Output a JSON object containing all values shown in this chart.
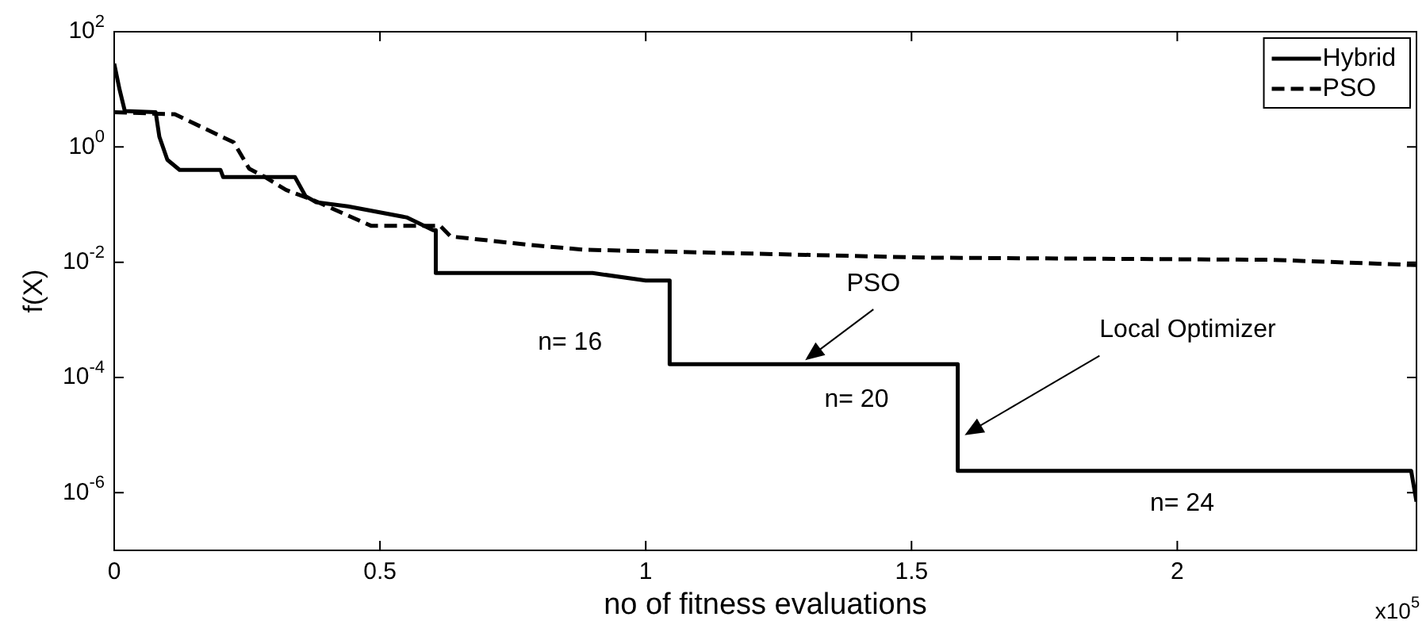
{
  "chart_data": {
    "type": "line",
    "xlabel": "no of fitness evaluations",
    "ylabel": "f(X)",
    "log": "y",
    "xlim": [
      0,
      2.45
    ],
    "xticks": [
      0,
      0.5,
      1,
      1.5,
      2
    ],
    "ylim": [
      1e-07,
      100
    ],
    "yticks": [
      {
        "value": 100,
        "label": "10$^{2}$"
      },
      {
        "value": 1,
        "label": "10$^{0}$"
      },
      {
        "value": 0.01,
        "label": "10$^{-2}$"
      },
      {
        "value": 0.0001,
        "label": "10$^{-4}$"
      },
      {
        "value": 1e-06,
        "label": "10$^{-6}$"
      }
    ],
    "grid": false,
    "legend": "top right",
    "marker": "none",
    "series": [
      {
        "name": "Hybrid",
        "color": "#000000",
        "line_style": "solid",
        "x": [
          0,
          0.01,
          0.02,
          0.078,
          0.085,
          0.1,
          0.123,
          0.2,
          0.205,
          0.34,
          0.36,
          0.38,
          0.44,
          0.55,
          0.6,
          0.605,
          0.605,
          0.9,
          1.0,
          1.045,
          1.045,
          1.587,
          1.587,
          2.44,
          2.45
        ],
        "values": [
          28,
          10,
          4.2,
          4,
          1.5,
          0.6,
          0.4,
          0.4,
          0.3,
          0.3,
          0.14,
          0.11,
          0.093,
          0.06,
          0.036,
          0.036,
          0.0065,
          0.0065,
          0.0048,
          0.0048,
          0.00017,
          0.00017,
          2.4e-06,
          2.4e-06,
          7e-07
        ]
      },
      {
        "name": "PSO",
        "color": "#000000",
        "line_style": "dashed",
        "x": [
          0,
          0.114,
          0.225,
          0.254,
          0.284,
          0.323,
          0.374,
          0.483,
          0.613,
          0.633,
          0.782,
          0.882,
          1.53,
          2.18,
          2.45
        ],
        "values": [
          4,
          3.7,
          1.2,
          0.42,
          0.3,
          0.18,
          0.12,
          0.043,
          0.043,
          0.028,
          0.02,
          0.0165,
          0.012,
          0.011,
          0.0089
        ]
      }
    ],
    "annotations": [
      {
        "text": "PSO",
        "x": 1.3,
        "y": 0.0002
      },
      {
        "text": "Local Optimizer",
        "x": 1.6,
        "y": 1e-05
      },
      "n= 16",
      "n= 20",
      "n= 24",
      "x10$^{5}$"
    ]
  }
}
